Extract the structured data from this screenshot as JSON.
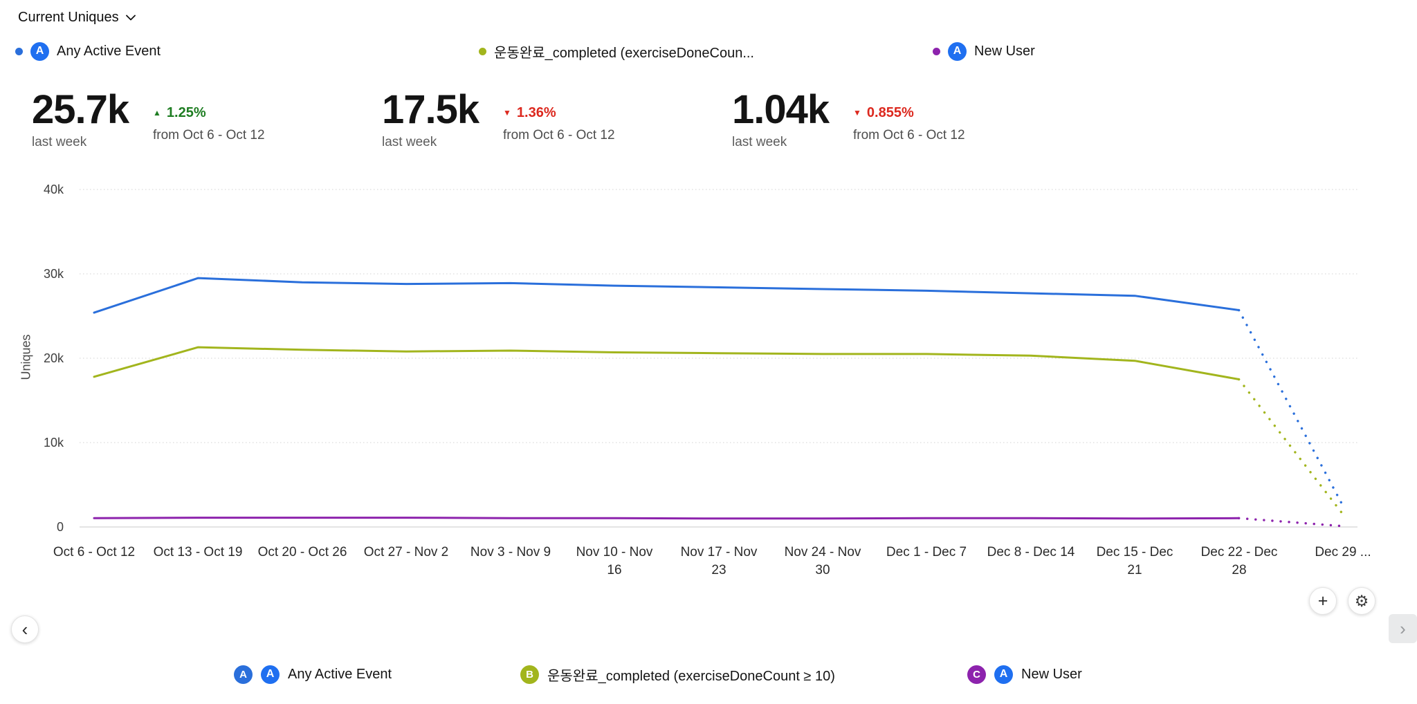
{
  "header": {
    "metric_label": "Current Uniques"
  },
  "ui": {
    "amplitude_glyph": "A",
    "amplitude_blue": "#1f6ff0"
  },
  "top_legend": [
    {
      "label": "Any Active Event",
      "dot_color": "#2a6fdb",
      "has_amplitude_icon": true
    },
    {
      "label": "운동완료_completed (exerciseDoneCoun...",
      "dot_color": "#a2b51d",
      "has_amplitude_icon": false
    },
    {
      "label": "New User",
      "dot_color": "#8d23ad",
      "has_amplitude_icon": true
    }
  ],
  "summary_cards": [
    {
      "series": "Any Active Event",
      "value": "25.7k",
      "period": "last week",
      "arrow": "▲",
      "change": "1.25%",
      "change_direction": "up",
      "change_color": "#1e7d22",
      "comparison": "from Oct 6 - Oct 12"
    },
    {
      "series": "운동완료_completed (exerciseDoneCount ≥ 10)",
      "value": "17.5k",
      "period": "last week",
      "arrow": "▼",
      "change": "1.36%",
      "change_direction": "down",
      "change_color": "#dc281e",
      "comparison": "from Oct 6 - Oct 12"
    },
    {
      "series": "New User",
      "value": "1.04k",
      "period": "last week",
      "arrow": "▼",
      "change": "0.855%",
      "change_direction": "down",
      "change_color": "#dc281e",
      "comparison": "from Oct 6 - Oct 12"
    }
  ],
  "chart_data": {
    "type": "line",
    "title": "Current Uniques",
    "xlabel": "",
    "ylabel": "Uniques",
    "ylim": [
      0,
      40000
    ],
    "ytick_values": [
      0,
      10000,
      20000,
      30000,
      40000
    ],
    "ytick_labels": [
      "0",
      "10k",
      "20k",
      "30k",
      "40k"
    ],
    "grid": "horizontal-dotted",
    "legend_position": "top-and-bottom",
    "categories": [
      "Oct 6 - Oct 12",
      "Oct 13 - Oct 19",
      "Oct 20 - Oct 26",
      "Oct 27 - Nov 2",
      "Nov 3 - Nov 9",
      "Nov 10 - Nov 16",
      "Nov 17 - Nov 23",
      "Nov 24 - Nov 30",
      "Dec 1 - Dec 7",
      "Dec 8 - Dec 14",
      "Dec 15 - Dec 21",
      "Dec 22 - Dec 28",
      "Dec 29 ..."
    ],
    "incomplete_from_index": 11,
    "series": [
      {
        "name": "Any Active Event",
        "color": "#2a6fdb",
        "values": [
          25400,
          29500,
          29000,
          28800,
          28900,
          28600,
          28400,
          28200,
          28000,
          27700,
          27400,
          25700,
          2500
        ]
      },
      {
        "name": "운동완료_completed (exerciseDoneCount ≥ 10)",
        "color": "#a2b51d",
        "values": [
          17800,
          21300,
          21000,
          20800,
          20900,
          20700,
          20600,
          20500,
          20500,
          20300,
          19700,
          17500,
          1500
        ]
      },
      {
        "name": "New User",
        "color": "#8d23ad",
        "values": [
          1050,
          1100,
          1100,
          1100,
          1050,
          1050,
          1000,
          1000,
          1050,
          1050,
          1000,
          1040,
          100
        ]
      }
    ]
  },
  "bottom_legend": [
    {
      "badge": "A",
      "badge_color": "#2a6fdb",
      "label": "Any Active Event",
      "has_amplitude_icon": true
    },
    {
      "badge": "B",
      "badge_color": "#a2b51d",
      "label": "운동완료_completed (exerciseDoneCount ≥ 10)",
      "has_amplitude_icon": false
    },
    {
      "badge": "C",
      "badge_color": "#8d23ad",
      "label": "New User",
      "has_amplitude_icon": true
    }
  ],
  "controls": {
    "add_glyph": "+",
    "settings_glyph": "⚙",
    "prev_glyph": "‹",
    "next_glyph": "›"
  }
}
